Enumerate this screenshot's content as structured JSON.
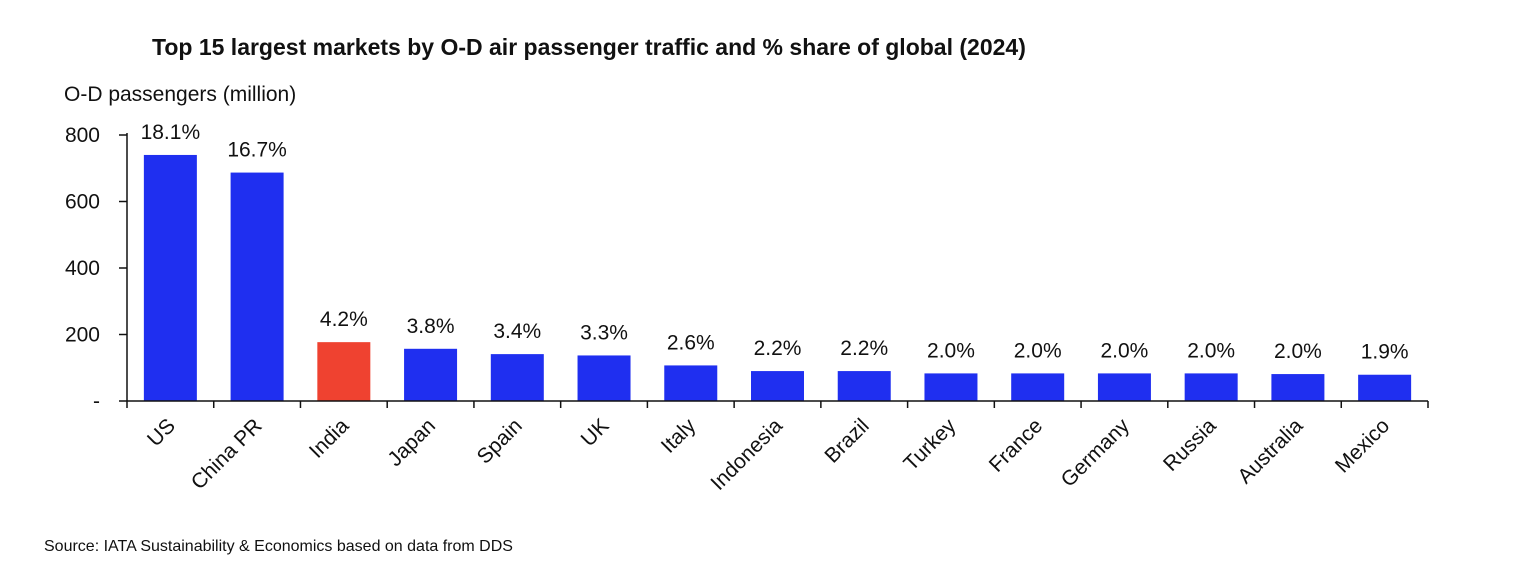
{
  "chart_data": {
    "type": "bar",
    "title": "Top 15 largest markets by O-D air passenger traffic and % share of global (2024)",
    "ylabel": "O-D passengers (million)",
    "xlabel": "",
    "ylim": [
      0,
      800
    ],
    "yticks": [
      0,
      200,
      400,
      600,
      800
    ],
    "ytick_labels": [
      "-",
      "200",
      "400",
      "600",
      "800"
    ],
    "categories": [
      "US",
      "China PR",
      "India",
      "Japan",
      "Spain",
      "UK",
      "Italy",
      "Indonesia",
      "Brazil",
      "Turkey",
      "France",
      "Germany",
      "Russia",
      "Australia",
      "Mexico"
    ],
    "values": [
      740,
      687,
      177,
      157,
      141,
      137,
      107,
      90,
      90,
      83,
      83,
      83,
      83,
      81,
      79
    ],
    "share_labels": [
      "18.1%",
      "16.7%",
      "4.2%",
      "3.8%",
      "3.4%",
      "3.3%",
      "2.6%",
      "2.2%",
      "2.2%",
      "2.0%",
      "2.0%",
      "2.0%",
      "2.0%",
      "2.0%",
      "1.9%"
    ],
    "highlight_category": "India",
    "colors": {
      "bar": "#1f2ff0",
      "highlight": "#ef4230",
      "axis": "#111111",
      "text": "#111111"
    },
    "grid": false,
    "legend": "none"
  },
  "source": "Source: IATA Sustainability & Economics based on data from DDS"
}
